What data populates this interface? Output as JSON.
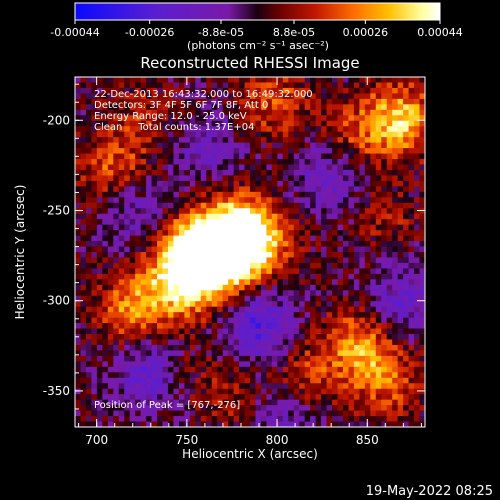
{
  "colorbar": {
    "tick_labels": [
      "-0.00044",
      "-0.00026",
      "-8.8e-05",
      "8.8e-05",
      "0.00026",
      "0.00044"
    ],
    "tick_values": [
      -0.00044,
      -0.00026,
      -8.8e-05,
      8.8e-05,
      0.00026,
      0.00044
    ],
    "range": [
      -0.00044,
      0.00044
    ],
    "unit_label": "(photons cm⁻² s⁻¹ asec⁻²)",
    "colors": [
      "#0a0aff",
      "#5a1ed0",
      "#7a1aa8",
      "#1a0010",
      "#6a0000",
      "#c21800",
      "#ff6a00",
      "#ffc000",
      "#ffffa0",
      "#ffffff"
    ]
  },
  "info": {
    "line1": "22-Dec-2013 16:43:32.000 to 16:49:32.000",
    "line2": "Detectors: 3F 4F 5F 6F 7F 8F, Att 0",
    "line3": "Energy Range: 12.0 - 25.0 keV",
    "line4": "Clean     Total counts: 1.37E+04",
    "peak": "Position of Peak = [767,-276]"
  },
  "footer": {
    "timestamp": "19-May-2022 08:25"
  },
  "chart_data": {
    "type": "heatmap",
    "title": "Reconstructed RHESSI Image",
    "xlabel": "Heliocentric X (arcsec)",
    "ylabel": "Heliocentric Y (arcsec)",
    "xlim": [
      688,
      882
    ],
    "ylim": [
      -370,
      -176
    ],
    "x_ticks": [
      700,
      750,
      800,
      850
    ],
    "y_ticks": [
      -200,
      -250,
      -300,
      -350
    ],
    "x_tick_labels": [
      "700",
      "750",
      "800",
      "850"
    ],
    "y_tick_labels": [
      "-200",
      "-250",
      "-300",
      "-350"
    ],
    "grid": false,
    "peak_position": [
      767,
      -276
    ],
    "sources": [
      {
        "x": 767,
        "y": -276,
        "amplitude": 0.00044
      },
      {
        "x": 778,
        "y": -262,
        "amplitude": 0.00038
      },
      {
        "x": 752,
        "y": -272,
        "amplitude": 0.0003
      },
      {
        "x": 748,
        "y": -290,
        "amplitude": 0.00032
      },
      {
        "x": 790,
        "y": -268,
        "amplitude": 0.00022
      },
      {
        "x": 720,
        "y": -305,
        "amplitude": 0.00026
      },
      {
        "x": 708,
        "y": -228,
        "amplitude": 0.0002
      },
      {
        "x": 725,
        "y": -200,
        "amplitude": 0.00012
      },
      {
        "x": 798,
        "y": -190,
        "amplitude": 0.00018
      },
      {
        "x": 868,
        "y": -200,
        "amplitude": 0.00034
      },
      {
        "x": 840,
        "y": -210,
        "amplitude": 0.00016
      },
      {
        "x": 860,
        "y": -255,
        "amplitude": 0.0001
      },
      {
        "x": 845,
        "y": -325,
        "amplitude": 0.00026
      },
      {
        "x": 860,
        "y": -345,
        "amplitude": 0.00018
      },
      {
        "x": 815,
        "y": -340,
        "amplitude": 0.00014
      },
      {
        "x": 780,
        "y": -355,
        "amplitude": 0.00012
      },
      {
        "x": 750,
        "y": -340,
        "amplitude": 8e-05
      },
      {
        "x": 720,
        "y": -250,
        "amplitude": -0.00016
      },
      {
        "x": 730,
        "y": -340,
        "amplitude": -0.00022
      },
      {
        "x": 790,
        "y": -315,
        "amplitude": -0.00026
      },
      {
        "x": 830,
        "y": -230,
        "amplitude": -0.0002
      },
      {
        "x": 870,
        "y": -300,
        "amplitude": -0.00018
      },
      {
        "x": 760,
        "y": -215,
        "amplitude": -0.00014
      },
      {
        "x": 800,
        "y": -365,
        "amplitude": -0.00016
      }
    ]
  }
}
